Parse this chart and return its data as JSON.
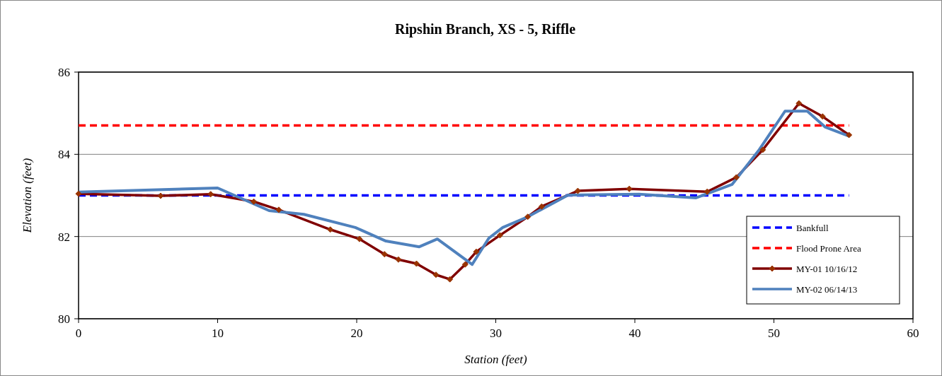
{
  "chart_data": {
    "type": "line",
    "title": "Ripshin Branch, XS - 5, Riffle",
    "xlabel": "Station (feet)",
    "ylabel": "Elevation (feet)",
    "xlim": [
      0,
      60
    ],
    "xticks": [
      0,
      10,
      20,
      30,
      40,
      50,
      60
    ],
    "ylim": [
      80,
      86
    ],
    "yticks": [
      80,
      82,
      84,
      86
    ],
    "grid": "y",
    "legend": "bottom right",
    "series": [
      {
        "name": "Bankfull",
        "color": "#0000ff",
        "line_style": "dashed",
        "marker": "none",
        "x": [
          0,
          55.4
        ],
        "values": [
          83.0,
          83.0
        ]
      },
      {
        "name": "Flood Prone Area",
        "color": "#ff0000",
        "line_style": "dashed",
        "marker": "none",
        "x": [
          0,
          55.4
        ],
        "values": [
          84.7,
          84.7
        ]
      },
      {
        "name": "MY-01 10/16/12",
        "color": "#800000",
        "line_style": "solid",
        "marker": "diamond",
        "x": [
          0,
          5.9,
          9.5,
          12.6,
          14.4,
          18.1,
          20.2,
          22.0,
          23.0,
          24.3,
          25.7,
          26.7,
          27.8,
          28.6,
          30.3,
          32.3,
          33.3,
          35.9,
          39.6,
          45.2,
          47.3,
          49.2,
          51.8,
          53.5,
          55.4
        ],
        "values": [
          83.04,
          82.99,
          83.03,
          82.85,
          82.65,
          82.17,
          81.94,
          81.57,
          81.44,
          81.34,
          81.07,
          80.96,
          81.32,
          81.63,
          82.03,
          82.48,
          82.73,
          83.11,
          83.16,
          83.09,
          83.44,
          84.11,
          85.24,
          84.92,
          84.47
        ]
      },
      {
        "name": "MY-02 06/14/13",
        "color": "#4f81bd",
        "line_style": "solid",
        "marker": "none",
        "x": [
          0,
          10.0,
          13.7,
          16.2,
          19.9,
          22.1,
          24.5,
          25.8,
          28.3,
          29.5,
          30.5,
          32.3,
          35.2,
          40.3,
          44.4,
          47.0,
          48.9,
          50.8,
          52.4,
          53.7,
          55.4
        ],
        "values": [
          83.08,
          83.18,
          82.63,
          82.54,
          82.22,
          81.89,
          81.75,
          81.94,
          81.32,
          81.96,
          82.22,
          82.48,
          83.01,
          83.03,
          82.94,
          83.27,
          84.09,
          85.05,
          85.05,
          84.66,
          84.44
        ]
      }
    ]
  }
}
